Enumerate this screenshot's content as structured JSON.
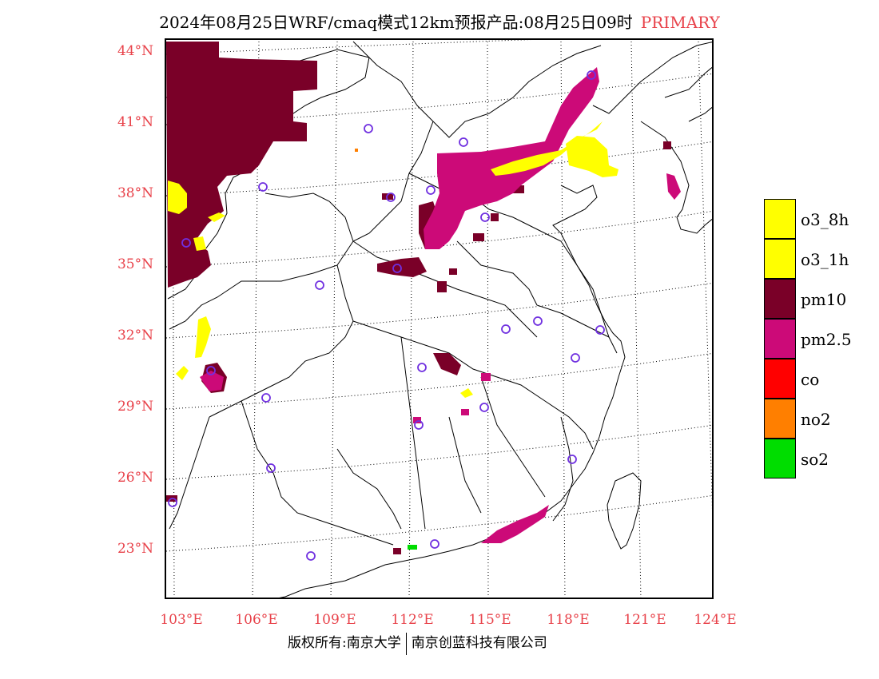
{
  "title": {
    "main": "2024年08月25日WRF/cmaq模式12km预报产品:08月25日09时",
    "tag": "PRIMARY"
  },
  "lat_labels": [
    "44°N",
    "41°N",
    "38°N",
    "35°N",
    "32°N",
    "29°N",
    "26°N",
    "23°N"
  ],
  "lon_labels": [
    "103°E",
    "106°E",
    "109°E",
    "112°E",
    "115°E",
    "118°E",
    "121°E",
    "124°E"
  ],
  "legend": [
    {
      "label": "o3_8h",
      "color": "#ffff00"
    },
    {
      "label": "o3_1h",
      "color": "#ffff00"
    },
    {
      "label": "pm10",
      "color": "#7a0028"
    },
    {
      "label": "pm2.5",
      "color": "#cc0a78"
    },
    {
      "label": "co",
      "color": "#ff0000"
    },
    {
      "label": "no2",
      "color": "#ff7f00"
    },
    {
      "label": "so2",
      "color": "#00dd00"
    }
  ],
  "credit": {
    "left": "版权所有:南京大学",
    "right": "南京创蓝科技有限公司"
  }
}
